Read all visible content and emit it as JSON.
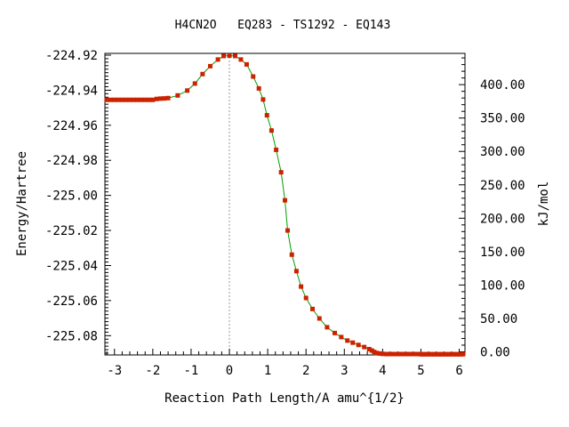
{
  "chart_data": {
    "type": "line",
    "title": "H4CN2O   EQ283 - TS1292 - EQ143",
    "xlabel": "Reaction Path Length/A amu^{1/2}",
    "ylabel": "Energy/Hartree",
    "y2label": "kJ/mol",
    "xlim": [
      -3.25,
      6.15
    ],
    "ylim": [
      -225.091,
      -224.919
    ],
    "y2lim": [
      -4.7,
      446.8
    ],
    "x_ticks": [
      -3,
      -2,
      -1,
      0,
      1,
      2,
      3,
      4,
      5,
      6
    ],
    "x_tick_labels": [
      "-3",
      "-2",
      "-1",
      "0",
      "1",
      "2",
      "3",
      "4",
      "5",
      "6"
    ],
    "y_ticks": [
      -224.92,
      -224.94,
      -224.96,
      -224.98,
      -225.0,
      -225.02,
      -225.04,
      -225.06,
      -225.08
    ],
    "y_tick_labels": [
      "-224.92",
      "-224.94",
      "-224.96",
      "-224.98",
      "-225.00",
      "-225.02",
      "-225.04",
      "-225.06",
      "-225.08"
    ],
    "y2_ticks": [
      0,
      50,
      100,
      150,
      200,
      250,
      300,
      350,
      400
    ],
    "y2_tick_labels": [
      "0.00",
      "50.00",
      "100.00",
      "150.00",
      "200.00",
      "250.00",
      "300.00",
      "350.00",
      "400.00"
    ],
    "ts_marker_x": 0,
    "grid": false,
    "line_color": "#00a000",
    "marker_color": "#cc2200",
    "series": [
      {
        "name": "",
        "points": [
          [
            -3.2,
            -224.9455
          ],
          [
            -3.1,
            -224.9455
          ],
          [
            -3.0,
            -224.9455
          ],
          [
            -2.9,
            -224.9455
          ],
          [
            -2.8,
            -224.9455
          ],
          [
            -2.7,
            -224.9455
          ],
          [
            -2.6,
            -224.9455
          ],
          [
            -2.5,
            -224.9455
          ],
          [
            -2.4,
            -224.9455
          ],
          [
            -2.3,
            -224.9455
          ],
          [
            -2.2,
            -224.9455
          ],
          [
            -2.1,
            -224.9455
          ],
          [
            -2.0,
            -224.9455
          ],
          [
            -1.9,
            -224.945
          ],
          [
            -1.8,
            -224.9448
          ],
          [
            -1.7,
            -224.9447
          ],
          [
            -1.6,
            -224.9445
          ],
          [
            -1.35,
            -224.943
          ],
          [
            -1.1,
            -224.9402
          ],
          [
            -0.9,
            -224.9362
          ],
          [
            -0.7,
            -224.9308
          ],
          [
            -0.5,
            -224.9263
          ],
          [
            -0.3,
            -224.9225
          ],
          [
            -0.15,
            -224.9205
          ],
          [
            0.0,
            -224.9203
          ],
          [
            0.15,
            -224.9205
          ],
          [
            0.3,
            -224.9225
          ],
          [
            0.45,
            -224.9253
          ],
          [
            0.62,
            -224.9322
          ],
          [
            0.77,
            -224.939
          ],
          [
            0.88,
            -224.9453
          ],
          [
            0.98,
            -224.9543
          ],
          [
            1.1,
            -224.963
          ],
          [
            1.22,
            -224.974
          ],
          [
            1.35,
            -224.9868
          ],
          [
            1.45,
            -225.0028
          ],
          [
            1.52,
            -225.02
          ],
          [
            1.63,
            -225.0338
          ],
          [
            1.75,
            -225.0432
          ],
          [
            1.87,
            -225.052
          ],
          [
            2.0,
            -225.0585
          ],
          [
            2.17,
            -225.0648
          ],
          [
            2.35,
            -225.0702
          ],
          [
            2.55,
            -225.0752
          ],
          [
            2.75,
            -225.0785
          ],
          [
            2.92,
            -225.0808
          ],
          [
            3.08,
            -225.0828
          ],
          [
            3.22,
            -225.084
          ],
          [
            3.37,
            -225.0853
          ],
          [
            3.52,
            -225.0865
          ],
          [
            3.65,
            -225.0877
          ],
          [
            3.72,
            -225.0885
          ],
          [
            3.78,
            -225.0893
          ],
          [
            3.85,
            -225.0899
          ],
          [
            3.92,
            -225.0902
          ],
          [
            4.0,
            -225.0904
          ],
          [
            4.1,
            -225.0905
          ],
          [
            4.2,
            -225.0905
          ],
          [
            4.3,
            -225.0905
          ],
          [
            4.4,
            -225.0905
          ],
          [
            4.5,
            -225.0905
          ],
          [
            4.6,
            -225.0905
          ],
          [
            4.7,
            -225.0905
          ],
          [
            4.8,
            -225.0905
          ],
          [
            4.9,
            -225.0905
          ],
          [
            4.95,
            -225.0905
          ],
          [
            5.0,
            -225.0906
          ],
          [
            5.05,
            -225.0906
          ],
          [
            5.1,
            -225.0906
          ],
          [
            5.15,
            -225.0906
          ],
          [
            5.2,
            -225.0906
          ],
          [
            5.25,
            -225.0906
          ],
          [
            5.3,
            -225.0906
          ],
          [
            5.35,
            -225.0906
          ],
          [
            5.4,
            -225.0906
          ],
          [
            5.45,
            -225.0906
          ],
          [
            5.5,
            -225.0906
          ],
          [
            5.55,
            -225.0906
          ],
          [
            5.6,
            -225.0906
          ],
          [
            5.65,
            -225.0906
          ],
          [
            5.7,
            -225.0906
          ],
          [
            5.75,
            -225.0906
          ],
          [
            5.8,
            -225.0906
          ],
          [
            5.85,
            -225.0906
          ],
          [
            5.9,
            -225.0906
          ],
          [
            5.95,
            -225.0906
          ],
          [
            6.0,
            -225.0906
          ],
          [
            6.05,
            -225.0906
          ],
          [
            6.1,
            -225.0906
          ]
        ]
      }
    ]
  }
}
